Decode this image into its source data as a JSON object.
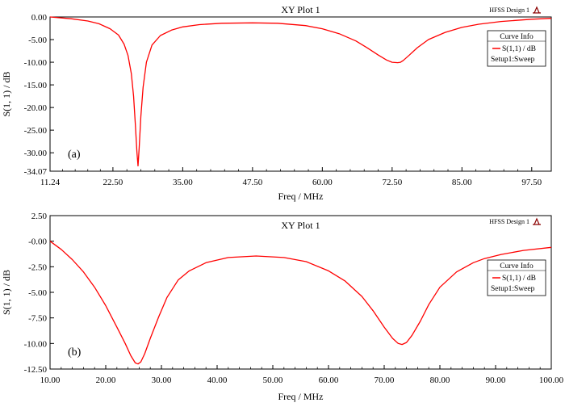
{
  "chart_data": [
    {
      "type": "line",
      "panel_label": "(a)",
      "title": "XY Plot 1",
      "badge": "HFSS Design 1",
      "xlabel": "Freq / MHz",
      "ylabel": "S(1, 1) / dB",
      "xlim": [
        11.24,
        101.0
      ],
      "ylim": [
        -34.07,
        0.0
      ],
      "x_ticks": [
        "11.24",
        "22.50",
        "35.00",
        "47.50",
        "60.00",
        "72.50",
        "85.00",
        "97.50"
      ],
      "y_ticks": [
        "0.00",
        "-5.00",
        "-10.00",
        "-15.00",
        "-20.00",
        "-25.00",
        "-30.00",
        "-34.07"
      ],
      "grid": false,
      "legend": {
        "title": "Curve Info",
        "placement": "top-right"
      },
      "series": [
        {
          "name": "S(1,1) / dB",
          "name_sub": "Setup1:Sweep",
          "color": "#ff0000",
          "x": [
            11.24,
            15,
            18,
            20,
            22,
            23.5,
            24.5,
            25.2,
            25.8,
            26.2,
            26.5,
            26.8,
            27.0,
            27.2,
            27.5,
            27.9,
            28.5,
            29.5,
            31,
            33,
            35,
            38,
            42,
            47.5,
            52,
            57,
            60,
            63,
            66,
            68,
            70,
            71.5,
            72.5,
            73.5,
            74.0,
            74.5,
            75.5,
            77,
            79,
            82,
            85,
            88,
            92,
            97.5,
            101
          ],
          "y": [
            0.0,
            -0.4,
            -0.9,
            -1.5,
            -2.6,
            -4.0,
            -6.0,
            -8.5,
            -12.5,
            -17.5,
            -23.5,
            -30.0,
            -32.9,
            -29.0,
            -22.0,
            -15.5,
            -10.0,
            -6.2,
            -4.1,
            -2.9,
            -2.2,
            -1.7,
            -1.4,
            -1.3,
            -1.4,
            -1.9,
            -2.6,
            -3.7,
            -5.3,
            -6.8,
            -8.4,
            -9.5,
            -10.0,
            -10.1,
            -10.0,
            -9.6,
            -8.5,
            -6.8,
            -5.0,
            -3.4,
            -2.3,
            -1.6,
            -1.0,
            -0.5,
            -0.3
          ]
        }
      ]
    },
    {
      "type": "line",
      "panel_label": "(b)",
      "title": "XY Plot 1",
      "badge": "HFSS Design 1",
      "xlabel": "Freq / MHz",
      "ylabel": "S(1, 1) / dB",
      "xlim": [
        10.0,
        100.0
      ],
      "ylim": [
        -12.5,
        2.5
      ],
      "x_ticks": [
        "10.00",
        "20.00",
        "30.00",
        "40.00",
        "50.00",
        "60.00",
        "70.00",
        "80.00",
        "90.00",
        "100.00"
      ],
      "y_ticks": [
        "2.50",
        "-0.00",
        "-2.50",
        "-5.00",
        "-7.50",
        "-10.00",
        "-12.50"
      ],
      "grid": false,
      "legend": {
        "title": "Curve Info",
        "placement": "top-right"
      },
      "series": [
        {
          "name": "S(1,1) / dB",
          "name_sub": "Setup1:Sweep",
          "color": "#ff0000",
          "x": [
            10,
            12,
            14,
            16,
            18,
            20,
            22,
            23.5,
            24.5,
            25.3,
            25.8,
            26.3,
            27,
            28,
            29.5,
            31,
            33,
            35,
            38,
            42,
            47,
            52,
            56,
            60,
            63,
            66,
            68,
            70,
            71.5,
            72.5,
            73.2,
            74,
            75,
            76.5,
            78,
            80,
            83,
            86,
            88,
            91,
            95,
            100
          ],
          "y": [
            0.0,
            -0.8,
            -1.8,
            -3.0,
            -4.5,
            -6.3,
            -8.4,
            -10.0,
            -11.2,
            -11.9,
            -12.0,
            -11.8,
            -11.0,
            -9.5,
            -7.4,
            -5.5,
            -3.8,
            -2.9,
            -2.1,
            -1.6,
            -1.45,
            -1.6,
            -2.0,
            -2.9,
            -3.9,
            -5.4,
            -6.8,
            -8.4,
            -9.5,
            -10.0,
            -10.1,
            -9.9,
            -9.2,
            -7.8,
            -6.2,
            -4.5,
            -3.0,
            -2.1,
            -1.7,
            -1.3,
            -0.9,
            -0.6
          ]
        }
      ]
    }
  ]
}
